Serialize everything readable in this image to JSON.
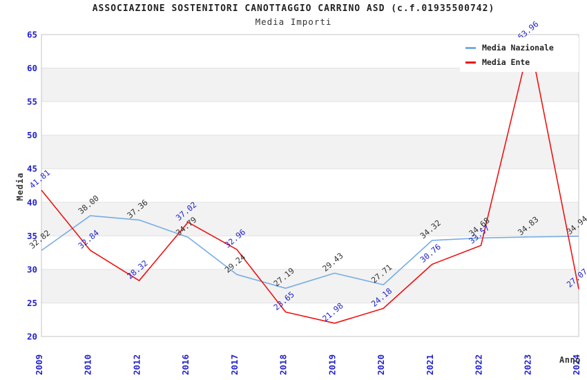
{
  "header": {
    "title": "ASSOCIAZIONE SOSTENITORI CANOTTAGGIO CARRINO ASD (c.f.01935500742)",
    "subtitle": "Media Importi"
  },
  "chart_data": {
    "type": "line",
    "title": "ASSOCIAZIONE SOSTENITORI CANOTTAGGIO CARRINO ASD (c.f.01935500742)",
    "subtitle": "Media Importi",
    "categories": [
      "2009",
      "2010",
      "2012",
      "2016",
      "2017",
      "2018",
      "2019",
      "2020",
      "2021",
      "2022",
      "2023",
      "2024"
    ],
    "series": [
      {
        "name": "Media Nazionale",
        "color": "#76ace6",
        "label_color": "#333333",
        "values": [
          32.82,
          38.0,
          37.36,
          34.79,
          29.24,
          27.19,
          29.43,
          27.71,
          34.32,
          34.68,
          34.83,
          34.94
        ]
      },
      {
        "name": "Media Ente",
        "color": "#ee1111",
        "label_color": "#2222cc",
        "values": [
          41.81,
          32.84,
          28.32,
          37.02,
          32.96,
          23.65,
          21.98,
          24.18,
          30.76,
          33.57,
          63.96,
          27.07
        ]
      }
    ],
    "xlabel": "Anno",
    "ylabel": "Media",
    "ylim": [
      20,
      65
    ],
    "ytick_step": 5,
    "grid": true,
    "legend_position": "top-right",
    "style": {
      "axis_tick_color": "#2222cc",
      "band_colors": [
        "#ffffff",
        "#f2f2f2"
      ],
      "grid_color": "#e2e2e2",
      "border_color": "#c4c4c4",
      "label_rotation_deg": -40,
      "tick_rotation_deg": -90
    }
  }
}
